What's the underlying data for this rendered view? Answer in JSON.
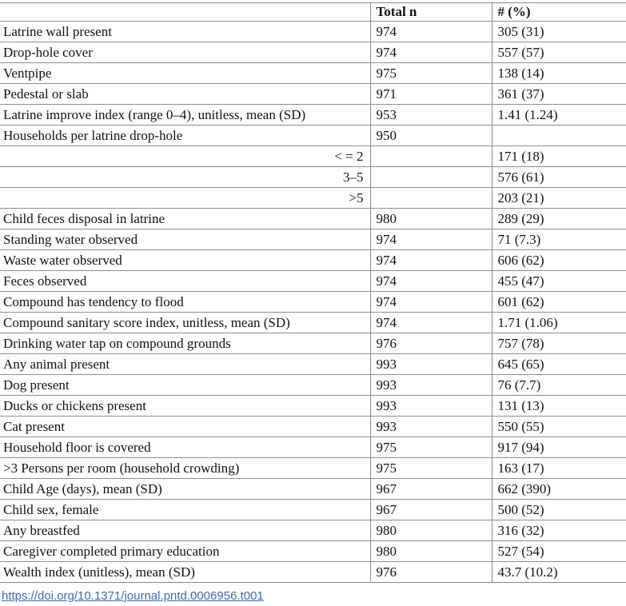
{
  "table": {
    "columns": [
      "",
      "Total n",
      "# (%)"
    ],
    "rows": [
      {
        "label": "Latrine wall present",
        "total_n": "974",
        "pct": "305 (31)",
        "sub": false
      },
      {
        "label": "Drop-hole cover",
        "total_n": "974",
        "pct": "557 (57)",
        "sub": false
      },
      {
        "label": "Ventpipe",
        "total_n": "975",
        "pct": "138 (14)",
        "sub": false
      },
      {
        "label": "Pedestal or slab",
        "total_n": "971",
        "pct": "361 (37)",
        "sub": false
      },
      {
        "label": "Latrine improve index (range 0–4), unitless, mean (SD)",
        "total_n": "953",
        "pct": "1.41 (1.24)",
        "sub": false
      },
      {
        "label": "Households per latrine drop-hole",
        "total_n": "950",
        "pct": "",
        "sub": false
      },
      {
        "label": "< = 2",
        "total_n": "",
        "pct": "171 (18)",
        "sub": true
      },
      {
        "label": "3–5",
        "total_n": "",
        "pct": "576 (61)",
        "sub": true
      },
      {
        "label": ">5",
        "total_n": "",
        "pct": "203 (21)",
        "sub": true
      },
      {
        "label": "Child feces disposal in latrine",
        "total_n": "980",
        "pct": "289 (29)",
        "sub": false
      },
      {
        "label": "Standing water observed",
        "total_n": "974",
        "pct": "71 (7.3)",
        "sub": false
      },
      {
        "label": "Waste water observed",
        "total_n": "974",
        "pct": "606 (62)",
        "sub": false
      },
      {
        "label": "Feces observed",
        "total_n": "974",
        "pct": "455 (47)",
        "sub": false
      },
      {
        "label": "Compound has tendency to flood",
        "total_n": "974",
        "pct": "601 (62)",
        "sub": false
      },
      {
        "label": "Compound sanitary score index, unitless, mean (SD)",
        "total_n": "974",
        "pct": "1.71 (1.06)",
        "sub": false
      },
      {
        "label": "Drinking water tap on compound grounds",
        "total_n": "976",
        "pct": "757 (78)",
        "sub": false
      },
      {
        "label": "Any animal present",
        "total_n": "993",
        "pct": "645 (65)",
        "sub": false
      },
      {
        "label": "Dog present",
        "total_n": "993",
        "pct": "76 (7.7)",
        "sub": false
      },
      {
        "label": "Ducks or chickens present",
        "total_n": "993",
        "pct": "131 (13)",
        "sub": false
      },
      {
        "label": "Cat present",
        "total_n": "993",
        "pct": "550 (55)",
        "sub": false
      },
      {
        "label": "Household floor is covered",
        "total_n": "975",
        "pct": "917 (94)",
        "sub": false
      },
      {
        "label": ">3 Persons per room (household crowding)",
        "total_n": "975",
        "pct": "163 (17)",
        "sub": false
      },
      {
        "label": "Child Age (days), mean (SD)",
        "total_n": "967",
        "pct": "662 (390)",
        "sub": false
      },
      {
        "label": "Child sex, female",
        "total_n": "967",
        "pct": "500 (52)",
        "sub": false
      },
      {
        "label": "Any breastfed",
        "total_n": "980",
        "pct": "316 (32)",
        "sub": false
      },
      {
        "label": "Caregiver completed primary education",
        "total_n": "980",
        "pct": "527 (54)",
        "sub": false
      },
      {
        "label": "Wealth index (unitless), mean (SD)",
        "total_n": "976",
        "pct": "43.7 (10.2)",
        "sub": false
      }
    ]
  },
  "footer": {
    "doi_link": "https://doi.org/10.1371/journal.pntd.0006956.t001"
  },
  "colors": {
    "rule_gray": "#8d8d8d",
    "link_blue": "#4169ac",
    "text": "#111111"
  }
}
